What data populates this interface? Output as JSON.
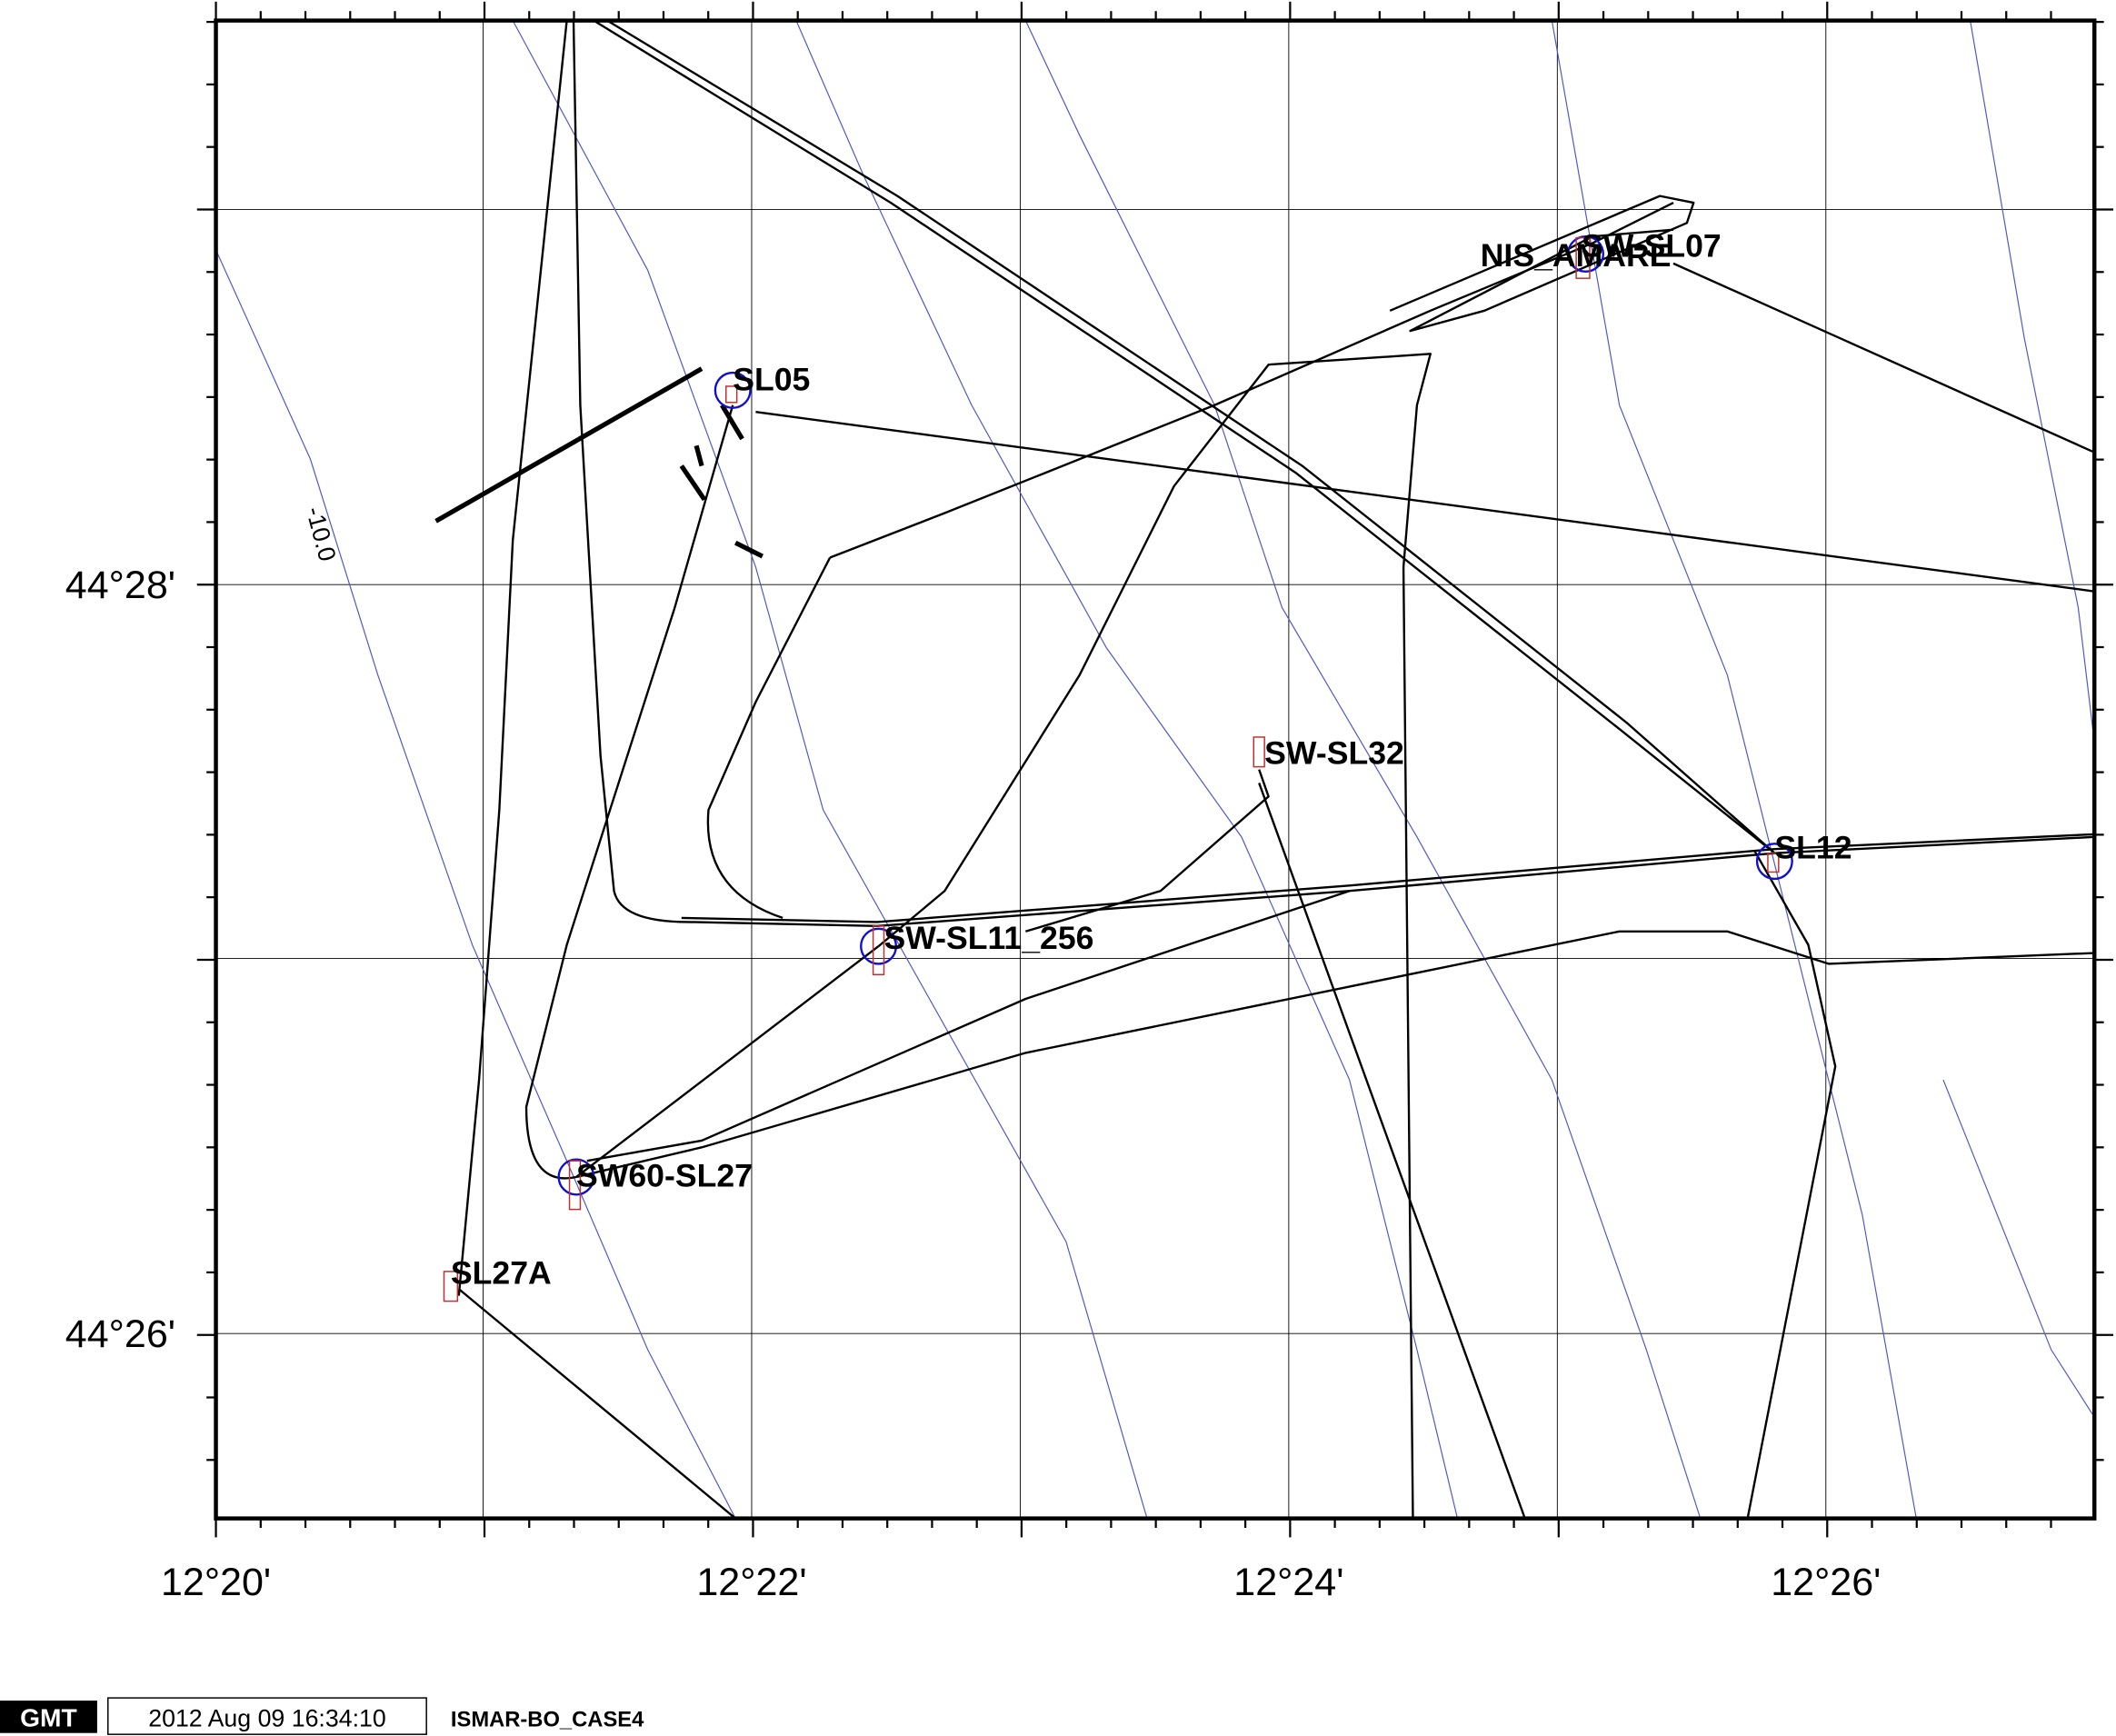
{
  "map": {
    "x_labels": [
      "12°20'",
      "12°22'",
      "12°24'",
      "12°26'"
    ],
    "y_labels": [
      "44°28'",
      "44°26'"
    ],
    "contour_label": "-10.0",
    "stations": [
      "SL05",
      "NIS_AMARE",
      "SW-SL07",
      "SW-SL32",
      "SL12",
      "SW-SL11_256",
      "SW60-SL27",
      "SL27A"
    ]
  },
  "footer": {
    "logo": "GMT",
    "timestamp": "2012 Aug 09 16:34:10",
    "title": "ISMAR-BO_CASE4"
  }
}
